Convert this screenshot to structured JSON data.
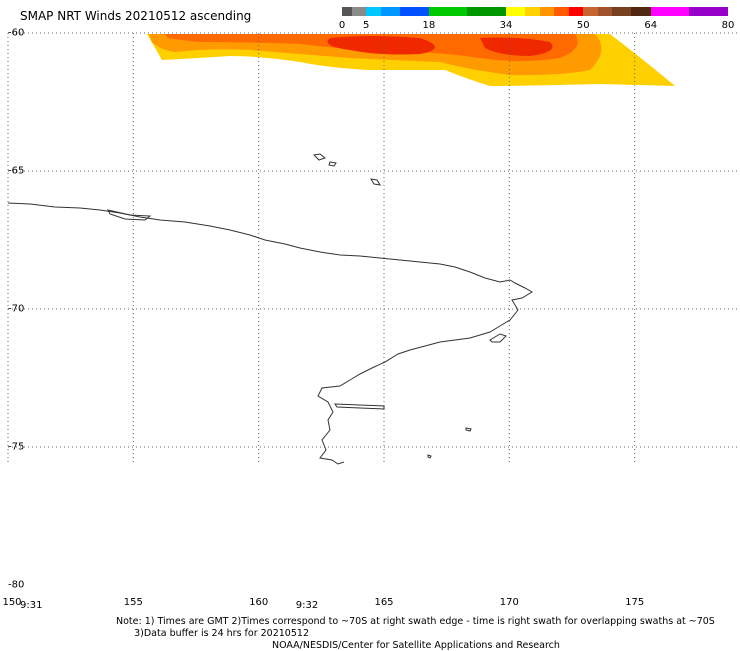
{
  "header": {
    "title": "SMAP NRT Winds 20210512 ascending"
  },
  "colorbar": {
    "labels": [
      {
        "text": "0",
        "value": 0
      },
      {
        "text": "5",
        "value": 5
      },
      {
        "text": "18",
        "value": 18
      },
      {
        "text": "34",
        "value": 34
      },
      {
        "text": "50",
        "value": 50
      },
      {
        "text": "64",
        "value": 64
      },
      {
        "text": "80",
        "value": 80
      }
    ],
    "segments": [
      {
        "from": 0,
        "to": 2,
        "color": "#555555"
      },
      {
        "from": 2,
        "to": 5,
        "color": "#8a8a8a"
      },
      {
        "from": 5,
        "to": 8,
        "color": "#00c8ff"
      },
      {
        "from": 8,
        "to": 12,
        "color": "#0096ff"
      },
      {
        "from": 12,
        "to": 18,
        "color": "#0050ff"
      },
      {
        "from": 18,
        "to": 26,
        "color": "#00c800"
      },
      {
        "from": 26,
        "to": 34,
        "color": "#009600"
      },
      {
        "from": 34,
        "to": 38,
        "color": "#ffff00"
      },
      {
        "from": 38,
        "to": 41,
        "color": "#ffd200"
      },
      {
        "from": 41,
        "to": 44,
        "color": "#ff9600"
      },
      {
        "from": 44,
        "to": 47,
        "color": "#ff5a00"
      },
      {
        "from": 47,
        "to": 50,
        "color": "#ff0000"
      },
      {
        "from": 50,
        "to": 53,
        "color": "#c86432"
      },
      {
        "from": 53,
        "to": 56,
        "color": "#a0522d"
      },
      {
        "from": 56,
        "to": 60,
        "color": "#784020"
      },
      {
        "from": 60,
        "to": 64,
        "color": "#502810"
      },
      {
        "from": 64,
        "to": 72,
        "color": "#ff00ff"
      },
      {
        "from": 72,
        "to": 80,
        "color": "#9600c8"
      }
    ]
  },
  "map": {
    "lon_range": [
      150,
      180
    ],
    "lat_range": [
      -60,
      -80
    ],
    "lon_ticks": [
      {
        "value": 150,
        "label": "150"
      },
      {
        "value": 155,
        "label": "155"
      },
      {
        "value": 160,
        "label": "160"
      },
      {
        "value": 165,
        "label": "165"
      },
      {
        "value": 170,
        "label": "170"
      },
      {
        "value": 175,
        "label": "175"
      }
    ],
    "lat_ticks": [
      {
        "value": -60,
        "label": "-60"
      },
      {
        "value": -65,
        "label": "-65"
      },
      {
        "value": -70,
        "label": "-70"
      },
      {
        "value": -75,
        "label": "-75"
      },
      {
        "value": -80,
        "label": "-80"
      }
    ],
    "time_labels": [
      {
        "text": "9:31",
        "lon": 150
      },
      {
        "text": "9:32",
        "lon": 161
      }
    ],
    "colors": {
      "grid": "#666666",
      "coast": "#333333",
      "wind_outer": "#ffd000",
      "wind_mid": "#ff9a00",
      "wind_inner": "#ff6a00",
      "wind_core": "#f02800"
    }
  },
  "footer": {
    "note_line1": "Note: 1) Times are GMT 2)Times correspond to ~70S at right swath edge - time is right swath for overlapping swaths at ~70S",
    "note_line2": "      3)Data buffer is 24 hrs for 20210512",
    "credit": "NOAA/NESDIS/Center for Satellite Applications and Research"
  }
}
